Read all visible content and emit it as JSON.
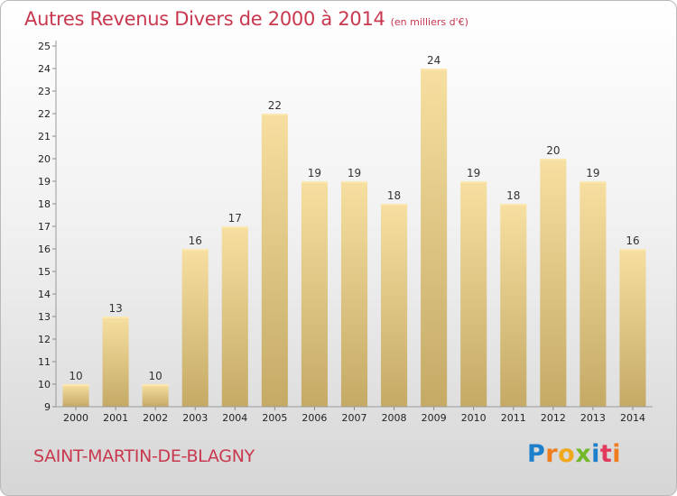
{
  "chart_data": {
    "type": "bar",
    "title": "Autres Revenus Divers de 2000 à 2014",
    "unit": "(en milliers d'€)",
    "categories": [
      "2000",
      "2001",
      "2002",
      "2003",
      "2004",
      "2005",
      "2006",
      "2007",
      "2008",
      "2009",
      "2010",
      "2011",
      "2012",
      "2013",
      "2014"
    ],
    "values": [
      10,
      13,
      10,
      16,
      17,
      22,
      19,
      19,
      18,
      24,
      19,
      18,
      20,
      19,
      16
    ],
    "ylim": [
      9,
      25
    ],
    "yticks": [
      "9",
      "10",
      "11",
      "12",
      "13",
      "14",
      "15",
      "16",
      "17",
      "18",
      "19",
      "20",
      "21",
      "22",
      "23",
      "24",
      "25"
    ],
    "grid": false,
    "legend": "none",
    "bar_color_top": "#f6dfa0",
    "bar_color_bottom": "#c5aa66"
  },
  "footer": {
    "commune": "SAINT-MARTIN-DE-BLAGNY",
    "logo": "Proxiti"
  },
  "colors": {
    "title": "#c8384f",
    "logo_letters": [
      "#1e7fcb",
      "#ef7d1d",
      "#f0a81c",
      "#74b92a",
      "#1e7fcb",
      "#e23a5c",
      "#ef7d1d"
    ]
  }
}
